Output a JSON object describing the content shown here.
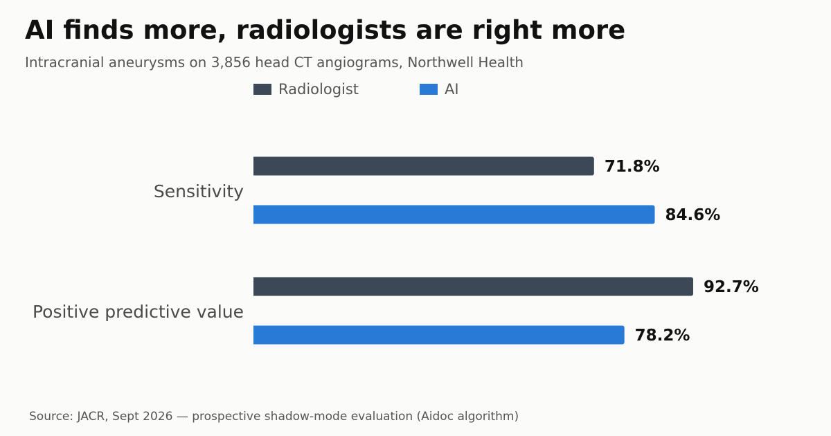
{
  "title": "AI finds more, radiologists are right more",
  "subtitle": "Intracranial aneurysms on 3,856 head CT angiograms, Northwell Health",
  "source": "Source: JACR, Sept 2026 — prospective shadow-mode evaluation (Aidoc algorithm)",
  "chart_data": {
    "type": "bar",
    "orientation": "horizontal",
    "categories": [
      "Sensitivity",
      "Positive predictive value"
    ],
    "series": [
      {
        "name": "Radiologist",
        "color": "#3d4856",
        "values": [
          71.8,
          92.7
        ]
      },
      {
        "name": "AI",
        "color": "#2979d6",
        "values": [
          84.6,
          78.2
        ]
      }
    ],
    "value_suffix": "%",
    "xlim": [
      0,
      100
    ],
    "legend_position": "top",
    "grid": false,
    "title": "AI finds more, radiologists are right more",
    "subtitle": "Intracranial aneurysms on 3,856 head CT angiograms, Northwell Health"
  }
}
